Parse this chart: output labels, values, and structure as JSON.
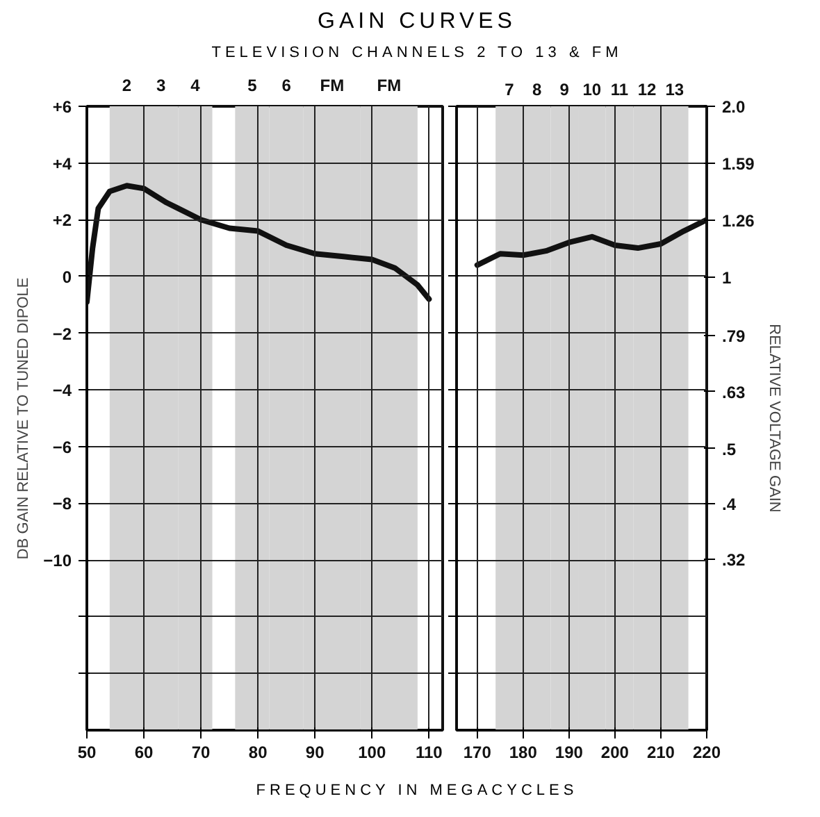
{
  "chart_data": [
    {
      "type": "line",
      "title": "GAIN CURVES",
      "subtitle": "TELEVISION CHANNELS 2 TO 13 & FM",
      "xlabel": "FREQUENCY IN MEGACYCLES",
      "ylabel": "DB GAIN RELATIVE TO TUNED DIPOLE",
      "x": [
        50,
        51,
        52,
        54,
        57,
        60,
        64,
        70,
        75,
        80,
        85,
        90,
        95,
        100,
        104,
        108,
        110
      ],
      "series": [
        {
          "color": "#111111",
          "values": [
            -0.9,
            1.0,
            2.4,
            3.0,
            3.2,
            3.1,
            2.6,
            2.0,
            1.7,
            1.6,
            1.1,
            0.8,
            0.7,
            0.6,
            0.3,
            -0.3,
            -0.8
          ]
        }
      ],
      "xlim": [
        50,
        112.4
      ],
      "xticks": [
        50,
        60,
        70,
        80,
        90,
        100,
        110
      ],
      "ylim": [
        -16,
        6
      ],
      "yticks": [
        {
          "value": 6,
          "label": "+6"
        },
        {
          "value": 4,
          "label": "+4"
        },
        {
          "value": 2,
          "label": "+2"
        },
        0,
        -2,
        -4,
        -6,
        -8,
        -10,
        {
          "value": -12,
          "label": null
        },
        {
          "value": -14,
          "label": null
        }
      ],
      "grid": true,
      "bands": [
        {
          "axis": "x",
          "from": 54,
          "to": 60,
          "label": "2",
          "color": "#d4d4d4"
        },
        {
          "axis": "x",
          "from": 60,
          "to": 66,
          "label": "3",
          "color": "#d4d4d4"
        },
        {
          "axis": "x",
          "from": 66,
          "to": 72,
          "label": "4",
          "color": "#d4d4d4"
        },
        {
          "axis": "x",
          "from": 76,
          "to": 82,
          "label": "5",
          "color": "#d4d4d4"
        },
        {
          "axis": "x",
          "from": 82,
          "to": 88,
          "label": "6",
          "color": "#d4d4d4"
        },
        {
          "axis": "x",
          "from": 88,
          "to": 98,
          "label": "FM",
          "color": "#d4d4d4"
        },
        {
          "axis": "x",
          "from": 98,
          "to": 108,
          "label": "FM",
          "color": "#d4d4d4"
        }
      ]
    },
    {
      "type": "line",
      "y2label": "RELATIVE VOLTAGE GAIN",
      "x": [
        170,
        175,
        180,
        185,
        190,
        195,
        200,
        205,
        210,
        215,
        220
      ],
      "series": [
        {
          "color": "#111111",
          "values": [
            0.4,
            0.8,
            0.75,
            0.9,
            1.2,
            1.4,
            1.1,
            1.0,
            1.15,
            1.6,
            2.0
          ]
        }
      ],
      "xlim": [
        165.5,
        220
      ],
      "xticks": [
        170,
        180,
        190,
        200,
        210,
        220
      ],
      "ylim": [
        -16,
        6
      ],
      "yticks": [
        6,
        4,
        2,
        0,
        -2,
        -4,
        -6,
        -8,
        -10,
        -12,
        -14
      ],
      "y2lim": [
        0.16,
        2.0
      ],
      "y2ticks": [
        {
          "value": 2.0,
          "label": "2.0"
        },
        {
          "value": 1.59,
          "label": "1.59"
        },
        {
          "value": 1.26,
          "label": "1.26"
        },
        {
          "value": 1,
          "label": "1"
        },
        {
          "value": 0.79,
          "label": ".79"
        },
        {
          "value": 0.63,
          "label": ".63"
        },
        {
          "value": 0.5,
          "label": ".5"
        },
        {
          "value": 0.4,
          "label": ".4"
        },
        {
          "value": 0.32,
          "label": ".32"
        }
      ],
      "log": "y2",
      "tick_labels": "x",
      "grid": true,
      "bands": [
        {
          "axis": "x",
          "from": 174,
          "to": 180,
          "label": "7",
          "color": "#d4d4d4"
        },
        {
          "axis": "x",
          "from": 180,
          "to": 186,
          "label": "8",
          "color": "#d4d4d4"
        },
        {
          "axis": "x",
          "from": 186,
          "to": 192,
          "label": "9",
          "color": "#d4d4d4"
        },
        {
          "axis": "x",
          "from": 192,
          "to": 198,
          "label": "10",
          "color": "#d4d4d4"
        },
        {
          "axis": "x",
          "from": 198,
          "to": 204,
          "label": "11",
          "color": "#d4d4d4"
        },
        {
          "axis": "x",
          "from": 204,
          "to": 210,
          "label": "12",
          "color": "#d4d4d4"
        },
        {
          "axis": "x",
          "from": 210,
          "to": 216,
          "label": "13",
          "color": "#d4d4d4"
        }
      ]
    }
  ]
}
